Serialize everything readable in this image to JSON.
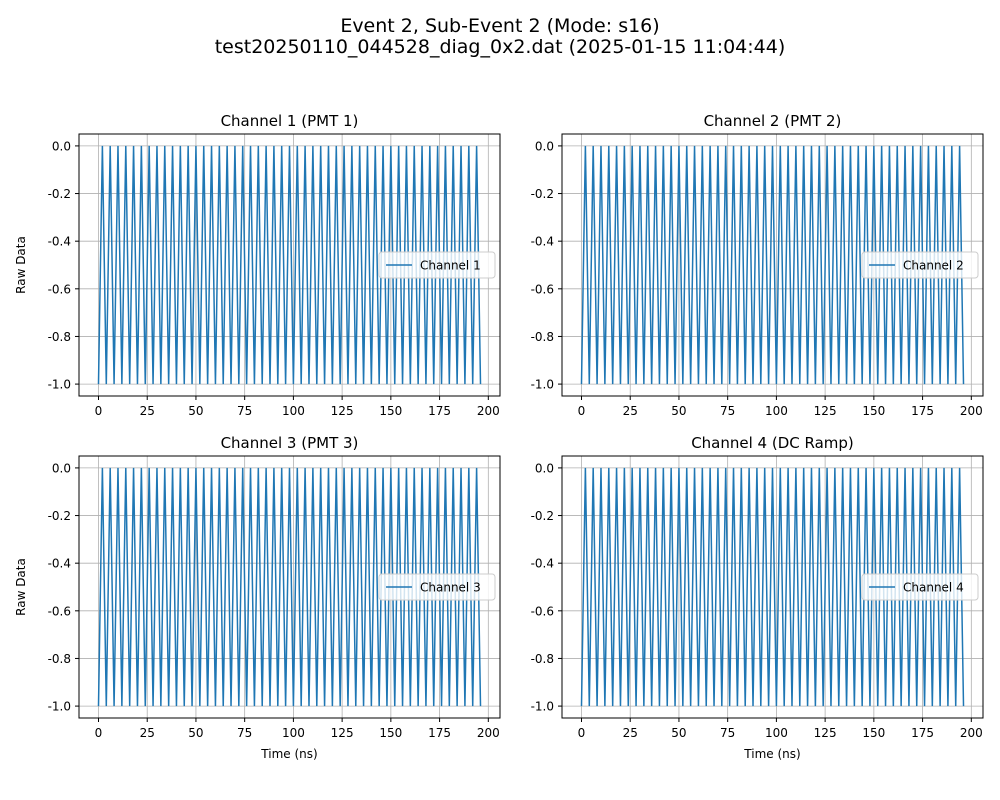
{
  "figure": {
    "title_line1": "Event 2, Sub-Event 2 (Mode: s16)",
    "title_line2": "test20250110_044528_diag_0x2.dat (2025-01-15 11:04:44)"
  },
  "colors": {
    "line": "#1f77b4",
    "grid": "#b0b0b0",
    "axes": "#000000",
    "legend_border": "#cccccc"
  },
  "chart_data": [
    {
      "type": "line",
      "title": "Channel 1 (PMT 1)",
      "xlabel": "",
      "ylabel": "Raw Data",
      "xlim": [
        -10,
        206
      ],
      "ylim": [
        -1.05,
        0.05
      ],
      "xticks": [
        0,
        25,
        50,
        75,
        100,
        125,
        150,
        175,
        200
      ],
      "yticks": [
        -1.0,
        -0.8,
        -0.6,
        -0.4,
        -0.2,
        0.0
      ],
      "grid": true,
      "legend": "center-right",
      "series": [
        {
          "name": "Channel 1",
          "x_start": 0,
          "x_end": 196,
          "x_step": 2,
          "pattern": [
            -1,
            0
          ]
        }
      ]
    },
    {
      "type": "line",
      "title": "Channel 2 (PMT 2)",
      "xlabel": "",
      "ylabel": "",
      "xlim": [
        -10,
        206
      ],
      "ylim": [
        -1.05,
        0.05
      ],
      "xticks": [
        0,
        25,
        50,
        75,
        100,
        125,
        150,
        175,
        200
      ],
      "yticks": [
        -1.0,
        -0.8,
        -0.6,
        -0.4,
        -0.2,
        0.0
      ],
      "grid": true,
      "legend": "center-right",
      "series": [
        {
          "name": "Channel 2",
          "x_start": 0,
          "x_end": 196,
          "x_step": 2,
          "pattern": [
            -1,
            0
          ]
        }
      ]
    },
    {
      "type": "line",
      "title": "Channel 3 (PMT 3)",
      "xlabel": "Time (ns)",
      "ylabel": "Raw Data",
      "xlim": [
        -10,
        206
      ],
      "ylim": [
        -1.05,
        0.05
      ],
      "xticks": [
        0,
        25,
        50,
        75,
        100,
        125,
        150,
        175,
        200
      ],
      "yticks": [
        -1.0,
        -0.8,
        -0.6,
        -0.4,
        -0.2,
        0.0
      ],
      "grid": true,
      "legend": "center-right",
      "series": [
        {
          "name": "Channel 3",
          "x_start": 0,
          "x_end": 196,
          "x_step": 2,
          "pattern": [
            -1,
            0
          ]
        }
      ]
    },
    {
      "type": "line",
      "title": "Channel 4 (DC Ramp)",
      "xlabel": "Time (ns)",
      "ylabel": "",
      "xlim": [
        -10,
        206
      ],
      "ylim": [
        -1.05,
        0.05
      ],
      "xticks": [
        0,
        25,
        50,
        75,
        100,
        125,
        150,
        175,
        200
      ],
      "yticks": [
        -1.0,
        -0.8,
        -0.6,
        -0.4,
        -0.2,
        0.0
      ],
      "grid": true,
      "legend": "center-right",
      "series": [
        {
          "name": "Channel 4",
          "x_start": 0,
          "x_end": 196,
          "x_step": 2,
          "pattern": [
            -1,
            0
          ]
        }
      ]
    }
  ]
}
